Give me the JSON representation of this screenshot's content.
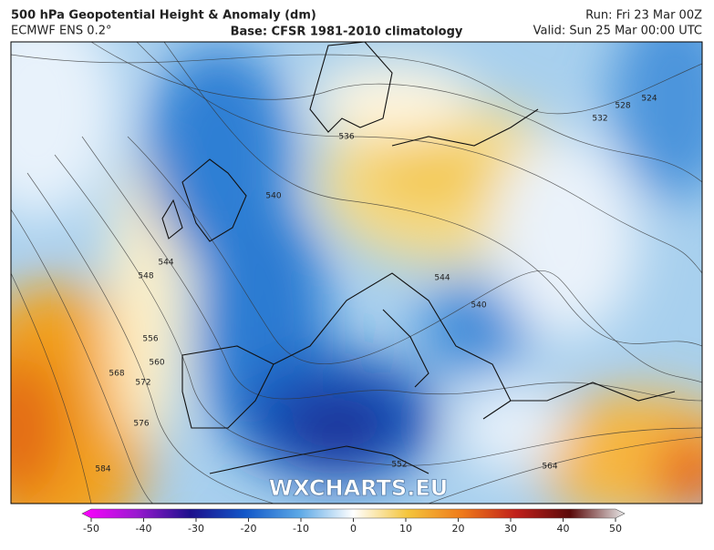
{
  "header": {
    "title": "500 hPa Geopotential Height & Anomaly (dm)",
    "model": "ECMWF ENS 0.2°",
    "base": "Base: CFSR 1981-2010 climatology",
    "run": "Run: Fri 23 Mar 00Z",
    "valid": "Valid: Sun 25 Mar 00:00 UTC"
  },
  "map": {
    "watermark": "WXCHARTS.EU",
    "contour_labels": [
      524,
      528,
      532,
      536,
      540,
      544,
      548,
      556,
      560,
      568,
      572,
      576,
      584,
      544,
      540,
      552,
      564
    ]
  },
  "colorbar": {
    "lim": [
      -50,
      50
    ],
    "ticks": [
      -50,
      -40,
      -30,
      -20,
      -10,
      0,
      10,
      20,
      30,
      40,
      50
    ]
  }
}
